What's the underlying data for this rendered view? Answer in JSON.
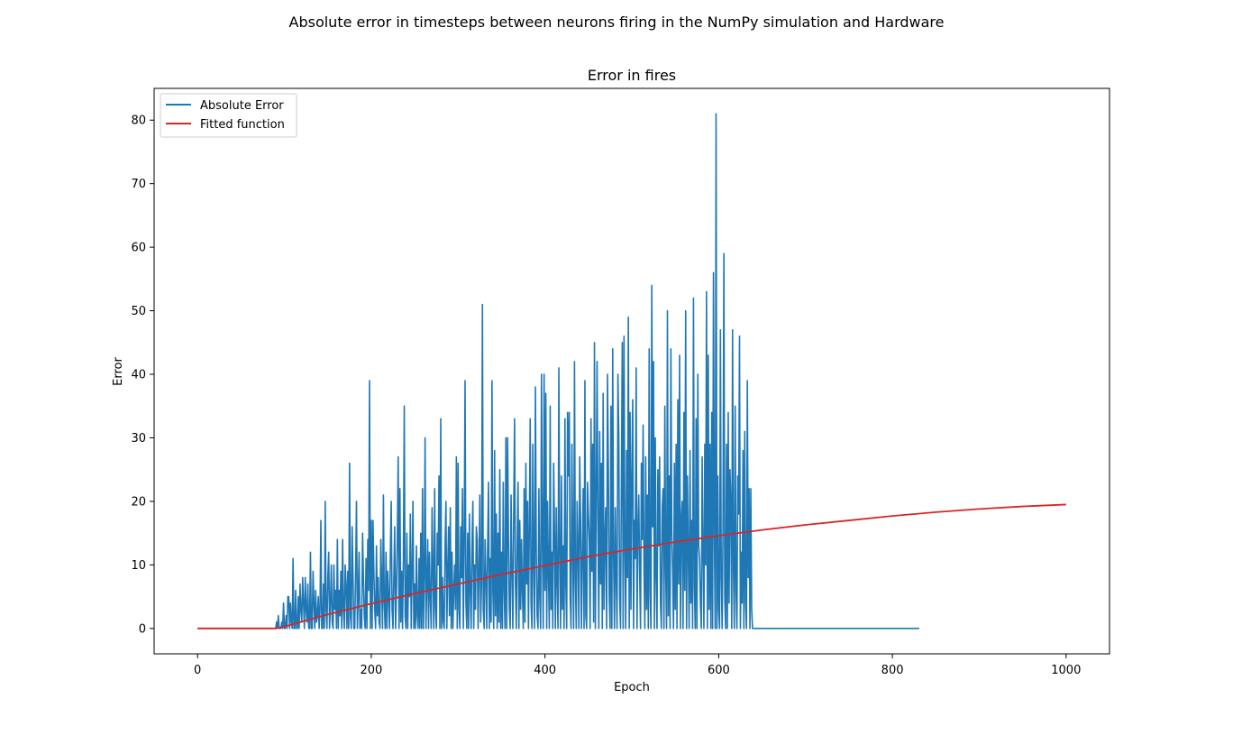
{
  "figure": {
    "suptitle": "Absolute error in timesteps between neurons firing in the NumPy simulation and Hardware"
  },
  "chart_data": {
    "type": "line",
    "title": "Error in fires",
    "xlabel": "Epoch",
    "ylabel": "Error",
    "xlim": [
      -50,
      1050
    ],
    "ylim": [
      -4,
      85
    ],
    "xticks": [
      0,
      200,
      400,
      600,
      800,
      1000
    ],
    "yticks": [
      0,
      10,
      20,
      30,
      40,
      50,
      60,
      70,
      80
    ],
    "grid": false,
    "legend": "top-left",
    "series": [
      {
        "name": "Absolute Error",
        "color": "#1f77b4",
        "x_start": 0,
        "x_step": 1,
        "values": [
          0,
          0,
          0,
          0,
          0,
          0,
          0,
          0,
          0,
          0,
          0,
          0,
          0,
          0,
          0,
          0,
          0,
          0,
          0,
          0,
          0,
          0,
          0,
          0,
          0,
          0,
          0,
          0,
          0,
          0,
          0,
          0,
          0,
          0,
          0,
          0,
          0,
          0,
          0,
          0,
          0,
          0,
          0,
          0,
          0,
          0,
          0,
          0,
          0,
          0,
          0,
          0,
          0,
          0,
          0,
          0,
          0,
          0,
          0,
          0,
          0,
          0,
          0,
          0,
          0,
          0,
          0,
          0,
          0,
          0,
          0,
          0,
          0,
          0,
          0,
          0,
          0,
          0,
          0,
          0,
          0,
          0,
          0,
          0,
          0,
          0,
          0,
          0,
          0,
          0,
          0,
          1,
          0,
          2,
          0,
          0,
          0,
          1,
          0,
          4,
          0,
          0,
          2,
          0,
          5,
          5,
          0,
          4,
          1,
          0,
          11,
          0,
          0,
          6,
          0,
          0,
          5,
          0,
          7,
          3,
          1,
          8,
          4,
          0,
          8,
          3,
          1,
          7,
          0,
          0,
          12,
          0,
          0,
          9,
          4,
          0,
          6,
          1,
          2,
          5,
          0,
          3,
          17,
          0,
          0,
          7,
          0,
          20,
          3,
          0,
          8,
          12,
          0,
          4,
          10,
          1,
          0,
          10,
          3,
          6,
          0,
          14,
          0,
          6,
          2,
          9,
          0,
          14,
          3,
          0,
          10,
          7,
          0,
          9,
          0,
          26,
          2,
          0,
          16,
          8,
          0,
          0,
          9,
          20,
          0,
          5,
          12,
          0,
          3,
          0,
          15,
          8,
          2,
          0,
          11,
          0,
          14,
          6,
          39,
          0,
          17,
          0,
          17,
          9,
          3,
          0,
          13,
          2,
          8,
          1,
          0,
          14,
          7,
          0,
          21,
          4,
          0,
          12,
          0,
          9,
          5,
          0,
          12,
          20,
          3,
          0,
          8,
          16,
          0,
          6,
          14,
          27,
          0,
          22,
          1,
          9,
          0,
          11,
          35,
          2,
          0,
          15,
          0,
          10,
          5,
          18,
          0,
          9,
          20,
          0,
          7,
          0,
          13,
          2,
          0,
          11,
          0,
          15,
          0,
          22,
          0,
          8,
          30,
          0,
          7,
          14,
          0,
          12,
          5,
          0,
          19,
          9,
          0,
          22,
          3,
          0,
          15,
          10,
          24,
          0,
          33,
          0,
          8,
          1,
          0,
          13,
          20,
          0,
          9,
          16,
          2,
          19,
          0,
          12,
          0,
          6,
          10,
          3,
          27,
          0,
          26,
          3,
          0,
          16,
          8,
          22,
          0,
          13,
          39,
          4,
          0,
          15,
          0,
          18,
          6,
          0,
          13,
          20,
          0,
          10,
          3,
          16,
          14,
          0,
          9,
          21,
          1,
          7,
          51,
          3,
          0,
          14,
          8,
          0,
          13,
          23,
          0,
          11,
          1,
          39,
          6,
          0,
          28,
          2,
          18,
          0,
          15,
          1,
          25,
          0,
          12,
          0,
          23,
          6,
          0,
          30,
          0,
          30,
          14,
          3,
          0,
          21,
          9,
          0,
          18,
          33,
          7,
          0,
          13,
          23,
          0,
          17,
          3,
          14,
          6,
          0,
          22,
          1,
          26,
          7,
          20,
          0,
          16,
          33,
          4,
          0,
          29,
          10,
          0,
          38,
          12,
          2,
          0,
          22,
          5,
          0,
          40,
          14,
          0,
          40,
          6,
          37,
          0,
          20,
          9,
          0,
          35,
          3,
          12,
          0,
          26,
          15,
          0,
          19,
          7,
          0,
          41,
          11,
          0,
          24,
          3,
          13,
          0,
          33,
          7,
          0,
          34,
          24,
          34,
          5,
          0,
          29,
          12,
          0,
          42,
          8,
          0,
          20,
          13,
          0,
          27,
          17,
          0,
          11,
          22,
          0,
          39,
          2,
          0,
          23,
          18,
          14,
          0,
          33,
          9,
          29,
          1,
          45,
          0,
          20,
          42,
          16,
          0,
          31,
          7,
          26,
          0,
          37,
          3,
          14,
          19,
          0,
          40,
          25,
          5,
          0,
          35,
          0,
          44,
          11,
          0,
          19,
          8,
          0,
          40,
          30,
          5,
          0,
          23,
          45,
          0,
          46,
          12,
          0,
          28,
          8,
          49,
          0,
          34,
          3,
          24,
          36,
          0,
          17,
          11,
          41,
          0,
          15,
          21,
          9,
          0,
          26,
          14,
          32,
          10,
          0,
          27,
          3,
          21,
          0,
          44,
          6,
          0,
          54,
          16,
          42,
          0,
          30,
          8,
          0,
          25,
          13,
          27,
          4,
          0,
          19,
          22,
          0,
          35,
          9,
          0,
          50,
          2,
          24,
          0,
          44,
          15,
          9,
          0,
          26,
          3,
          29,
          0,
          36,
          7,
          43,
          0,
          17,
          20,
          0,
          34,
          6,
          50,
          0,
          24,
          12,
          0,
          28,
          4,
          17,
          0,
          52,
          7,
          0,
          33,
          0,
          40,
          13,
          11,
          4,
          0,
          27,
          12,
          0,
          29,
          10,
          53,
          0,
          43,
          3,
          29,
          0,
          34,
          0,
          56,
          15,
          0,
          81,
          0,
          24,
          3,
          0,
          47,
          8,
          0,
          16,
          59,
          5,
          0,
          29,
          0,
          34,
          4,
          25,
          20,
          0,
          47,
          9,
          0,
          35,
          6,
          0,
          24,
          18,
          46,
          0,
          12,
          4,
          28,
          0,
          31,
          4,
          0,
          39,
          8,
          22,
          0,
          22,
          3,
          0,
          0,
          0,
          0,
          0,
          0,
          0,
          0,
          0,
          0,
          0,
          0,
          0,
          0,
          0,
          0,
          0,
          0,
          0,
          0,
          0,
          0,
          0,
          0,
          0,
          0,
          0,
          0,
          0,
          0,
          0,
          0,
          0,
          0,
          0,
          0,
          0,
          0,
          0,
          0,
          0,
          0,
          0,
          0,
          0,
          0,
          0,
          0,
          0,
          0,
          0,
          0,
          0,
          0,
          0,
          0,
          0,
          0,
          0,
          0,
          0,
          0,
          0,
          0,
          0,
          0,
          0,
          0,
          0,
          0,
          0,
          0,
          0,
          0,
          0,
          0,
          0,
          0,
          0,
          0,
          0,
          0,
          0,
          0,
          0,
          0,
          0,
          0,
          0,
          0,
          0,
          0,
          0,
          0,
          0,
          0,
          0,
          0,
          0,
          0,
          0,
          0,
          0,
          0,
          0,
          0,
          0,
          0,
          0,
          0,
          0,
          0,
          0,
          0,
          0,
          0,
          0,
          0,
          0,
          0,
          0,
          0,
          0,
          0,
          0,
          0,
          0,
          0,
          0,
          0,
          0,
          0,
          0,
          0,
          0,
          0,
          0,
          0,
          0,
          0,
          0,
          0,
          0,
          0,
          0,
          0,
          0,
          0,
          0,
          0,
          0,
          0,
          0,
          0,
          0,
          0,
          0,
          0,
          0,
          0,
          0,
          0,
          0,
          0,
          0,
          0,
          0,
          0,
          0,
          0,
          0,
          0,
          0,
          0,
          0,
          0,
          0,
          0,
          0,
          0,
          0,
          0,
          0,
          0,
          0,
          0,
          0,
          0,
          0,
          0,
          0,
          0,
          0
        ]
      },
      {
        "name": "Fitted function",
        "color": "#d62728",
        "x": [
          0,
          90,
          100,
          150,
          200,
          250,
          300,
          350,
          400,
          450,
          500,
          550,
          600,
          650,
          700,
          750,
          800,
          850,
          900,
          950,
          1000
        ],
        "y": [
          0,
          0,
          0.3,
          2.2,
          3.9,
          5.5,
          7.0,
          8.5,
          9.9,
          11.3,
          12.5,
          13.6,
          14.6,
          15.5,
          16.3,
          17.0,
          17.7,
          18.3,
          18.8,
          19.2,
          19.5
        ]
      }
    ]
  }
}
